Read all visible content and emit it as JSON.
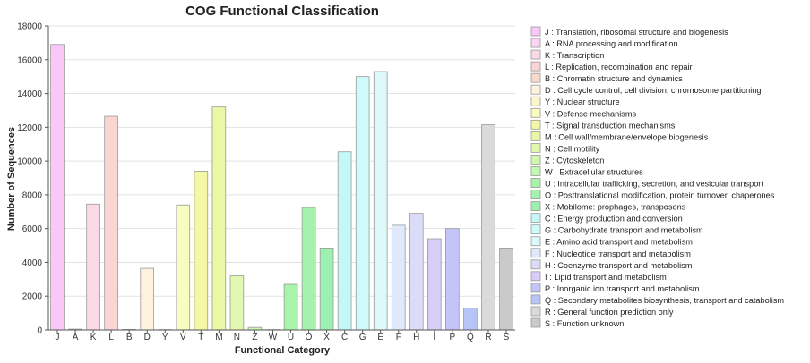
{
  "chart_data": {
    "type": "bar",
    "title": "COG Functional Classification",
    "xlabel": "Functional Category",
    "ylabel": "Number of Sequences",
    "ylim": [
      0,
      18000
    ],
    "yticks": [
      "0",
      "2000",
      "4000",
      "6000",
      "8000",
      "10000",
      "12000",
      "14000",
      "16000",
      "18000"
    ],
    "grid": true,
    "legend_position": "right",
    "categories": [
      "J",
      "A",
      "K",
      "L",
      "B",
      "D",
      "Y",
      "V",
      "T",
      "M",
      "N",
      "Z",
      "W",
      "U",
      "O",
      "X",
      "C",
      "G",
      "E",
      "F",
      "H",
      "I",
      "P",
      "Q",
      "R",
      "S"
    ],
    "values": [
      16900,
      50,
      7450,
      12650,
      30,
      3650,
      20,
      7400,
      9400,
      13200,
      3200,
      150,
      20,
      2700,
      7250,
      4850,
      10550,
      15000,
      15300,
      6200,
      6900,
      5400,
      6000,
      1300,
      12150,
      4850
    ],
    "colors": [
      "#f9c8f9",
      "#fbd4f4",
      "#fbd8e6",
      "#fbd4d4",
      "#fbd8cc",
      "#fdf2dc",
      "#fcf6cc",
      "#f8fcbe",
      "#f4f8a6",
      "#e8f8a4",
      "#e2f8b0",
      "#d0f8b0",
      "#c2f8b0",
      "#a8f4a8",
      "#a4f2ac",
      "#9ef0b0",
      "#c4f8f8",
      "#d0fafa",
      "#dcf8f8",
      "#dfe9fb",
      "#dcdcf8",
      "#d8ccf8",
      "#c4c4f8",
      "#b6c4f8",
      "#dadada",
      "#cacaca"
    ],
    "legend": [
      "J : Translation, ribosomal structure and biogenesis",
      "A : RNA processing and modification",
      "K : Transcription",
      "L : Replication, recombination and repair",
      "B : Chromatin structure and dynamics",
      "D : Cell cycle control, cell division, chromosome partitioning",
      "Y : Nuclear structure",
      "V : Defense mechanisms",
      "T : Signal transduction mechanisms",
      "M : Cell wall/membrane/envelope biogenesis",
      "N : Cell motility",
      "Z : Cytoskeleton",
      "W : Extracellular structures",
      "U : Intracellular trafficking, secretion, and vesicular transport",
      "O : Posttranslational modification, protein turnover, chaperones",
      "X : Mobilome: prophages, transposons",
      "C : Energy production and conversion",
      "G : Carbohydrate transport and metabolism",
      "E : Amino acid transport and metabolism",
      "F : Nucleotide transport and metabolism",
      "H : Coenzyme transport and metabolism",
      "I : Lipid transport and metabolism",
      "P : Inorganic ion transport and metabolism",
      "Q : Secondary metabolites biosynthesis, transport and catabolism",
      "R : General function prediction only",
      "S : Function unknown"
    ]
  }
}
